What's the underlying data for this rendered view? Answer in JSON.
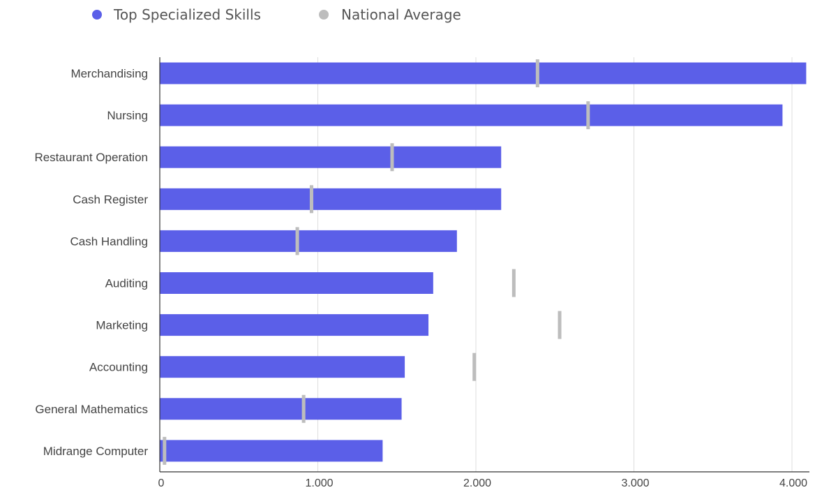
{
  "chart_data": {
    "type": "bar",
    "orientation": "horizontal",
    "categories": [
      "Merchandising",
      "Nursing",
      "Restaurant Operation",
      "Cash Register",
      "Cash Handling",
      "Auditing",
      "Marketing",
      "Accounting",
      "General Mathematics",
      "Midrange Computer"
    ],
    "series": [
      {
        "name": "Top Specialized Skills",
        "kind": "bar",
        "color": "#5b5fe8",
        "values": [
          4090,
          3940,
          2160,
          2160,
          1880,
          1730,
          1700,
          1550,
          1530,
          1410
        ]
      },
      {
        "name": "National Average",
        "kind": "marker",
        "color": "#bdbdbd",
        "values": [
          2390,
          2710,
          1470,
          960,
          870,
          2240,
          2530,
          1990,
          910,
          30
        ]
      }
    ],
    "xlim": [
      0,
      4100
    ],
    "xticks": [
      0,
      1000,
      2000,
      3000,
      4000
    ],
    "xtick_labels": [
      "0",
      "1.000",
      "2.000",
      "3.000",
      "4.000"
    ],
    "grid": true,
    "legend_position": "top-left"
  }
}
